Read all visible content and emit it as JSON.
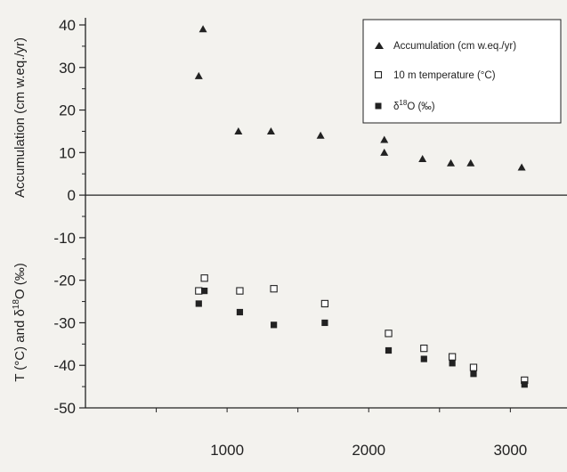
{
  "chart_data": {
    "type": "scatter",
    "title": "",
    "xlabel": "",
    "ylabel_top": "Accumulation (cm w.eq./yr)",
    "ylabel_bottom": "T (°C) and δ18O (‰)",
    "ylabel_bottom_parts": [
      "T (°C) and δ",
      "18",
      "O (‰)"
    ],
    "xlim": [
      0,
      3400
    ],
    "ylim": [
      -50,
      40
    ],
    "x_ticks": [
      1000,
      2000,
      3000
    ],
    "x_tick_labels": [
      "1000",
      "2000",
      "3000"
    ],
    "y_ticks": [
      -50,
      -40,
      -30,
      -20,
      -10,
      0,
      10,
      20,
      30,
      40
    ],
    "y_tick_labels": [
      "-50",
      "-40",
      "-30",
      "-20",
      "-10",
      "0",
      "10",
      "20",
      "30",
      "40"
    ],
    "grid": false,
    "legend_position": "top-right",
    "series": [
      {
        "name": "Accumulation (cm w.eq./yr)",
        "marker": "filled-triangle",
        "x": [
          800,
          830,
          1080,
          1310,
          1660,
          2110,
          2110,
          2380,
          2580,
          2720,
          3080
        ],
        "y": [
          28,
          39,
          15,
          15,
          14,
          13,
          10,
          8.5,
          7.5,
          7.5,
          6.5
        ]
      },
      {
        "name": "10 m temperature (°C)",
        "marker": "open-square",
        "x": [
          800,
          840,
          1090,
          1330,
          1690,
          2140,
          2390,
          2590,
          2740,
          3100
        ],
        "y": [
          -22.5,
          -19.5,
          -22.5,
          -22,
          -25.5,
          -32.5,
          -36,
          -38,
          -40.5,
          -43.5
        ]
      },
      {
        "name": "δ18O (‰)",
        "name_parts": [
          "δ",
          "18",
          "O (‰)"
        ],
        "marker": "filled-square",
        "x": [
          800,
          840,
          1090,
          1330,
          1690,
          2140,
          2390,
          2590,
          2740,
          3100
        ],
        "y": [
          -25.5,
          -22.5,
          -27.5,
          -30.5,
          -30,
          -36.5,
          -38.5,
          -39.5,
          -42,
          -44.5
        ]
      }
    ]
  }
}
